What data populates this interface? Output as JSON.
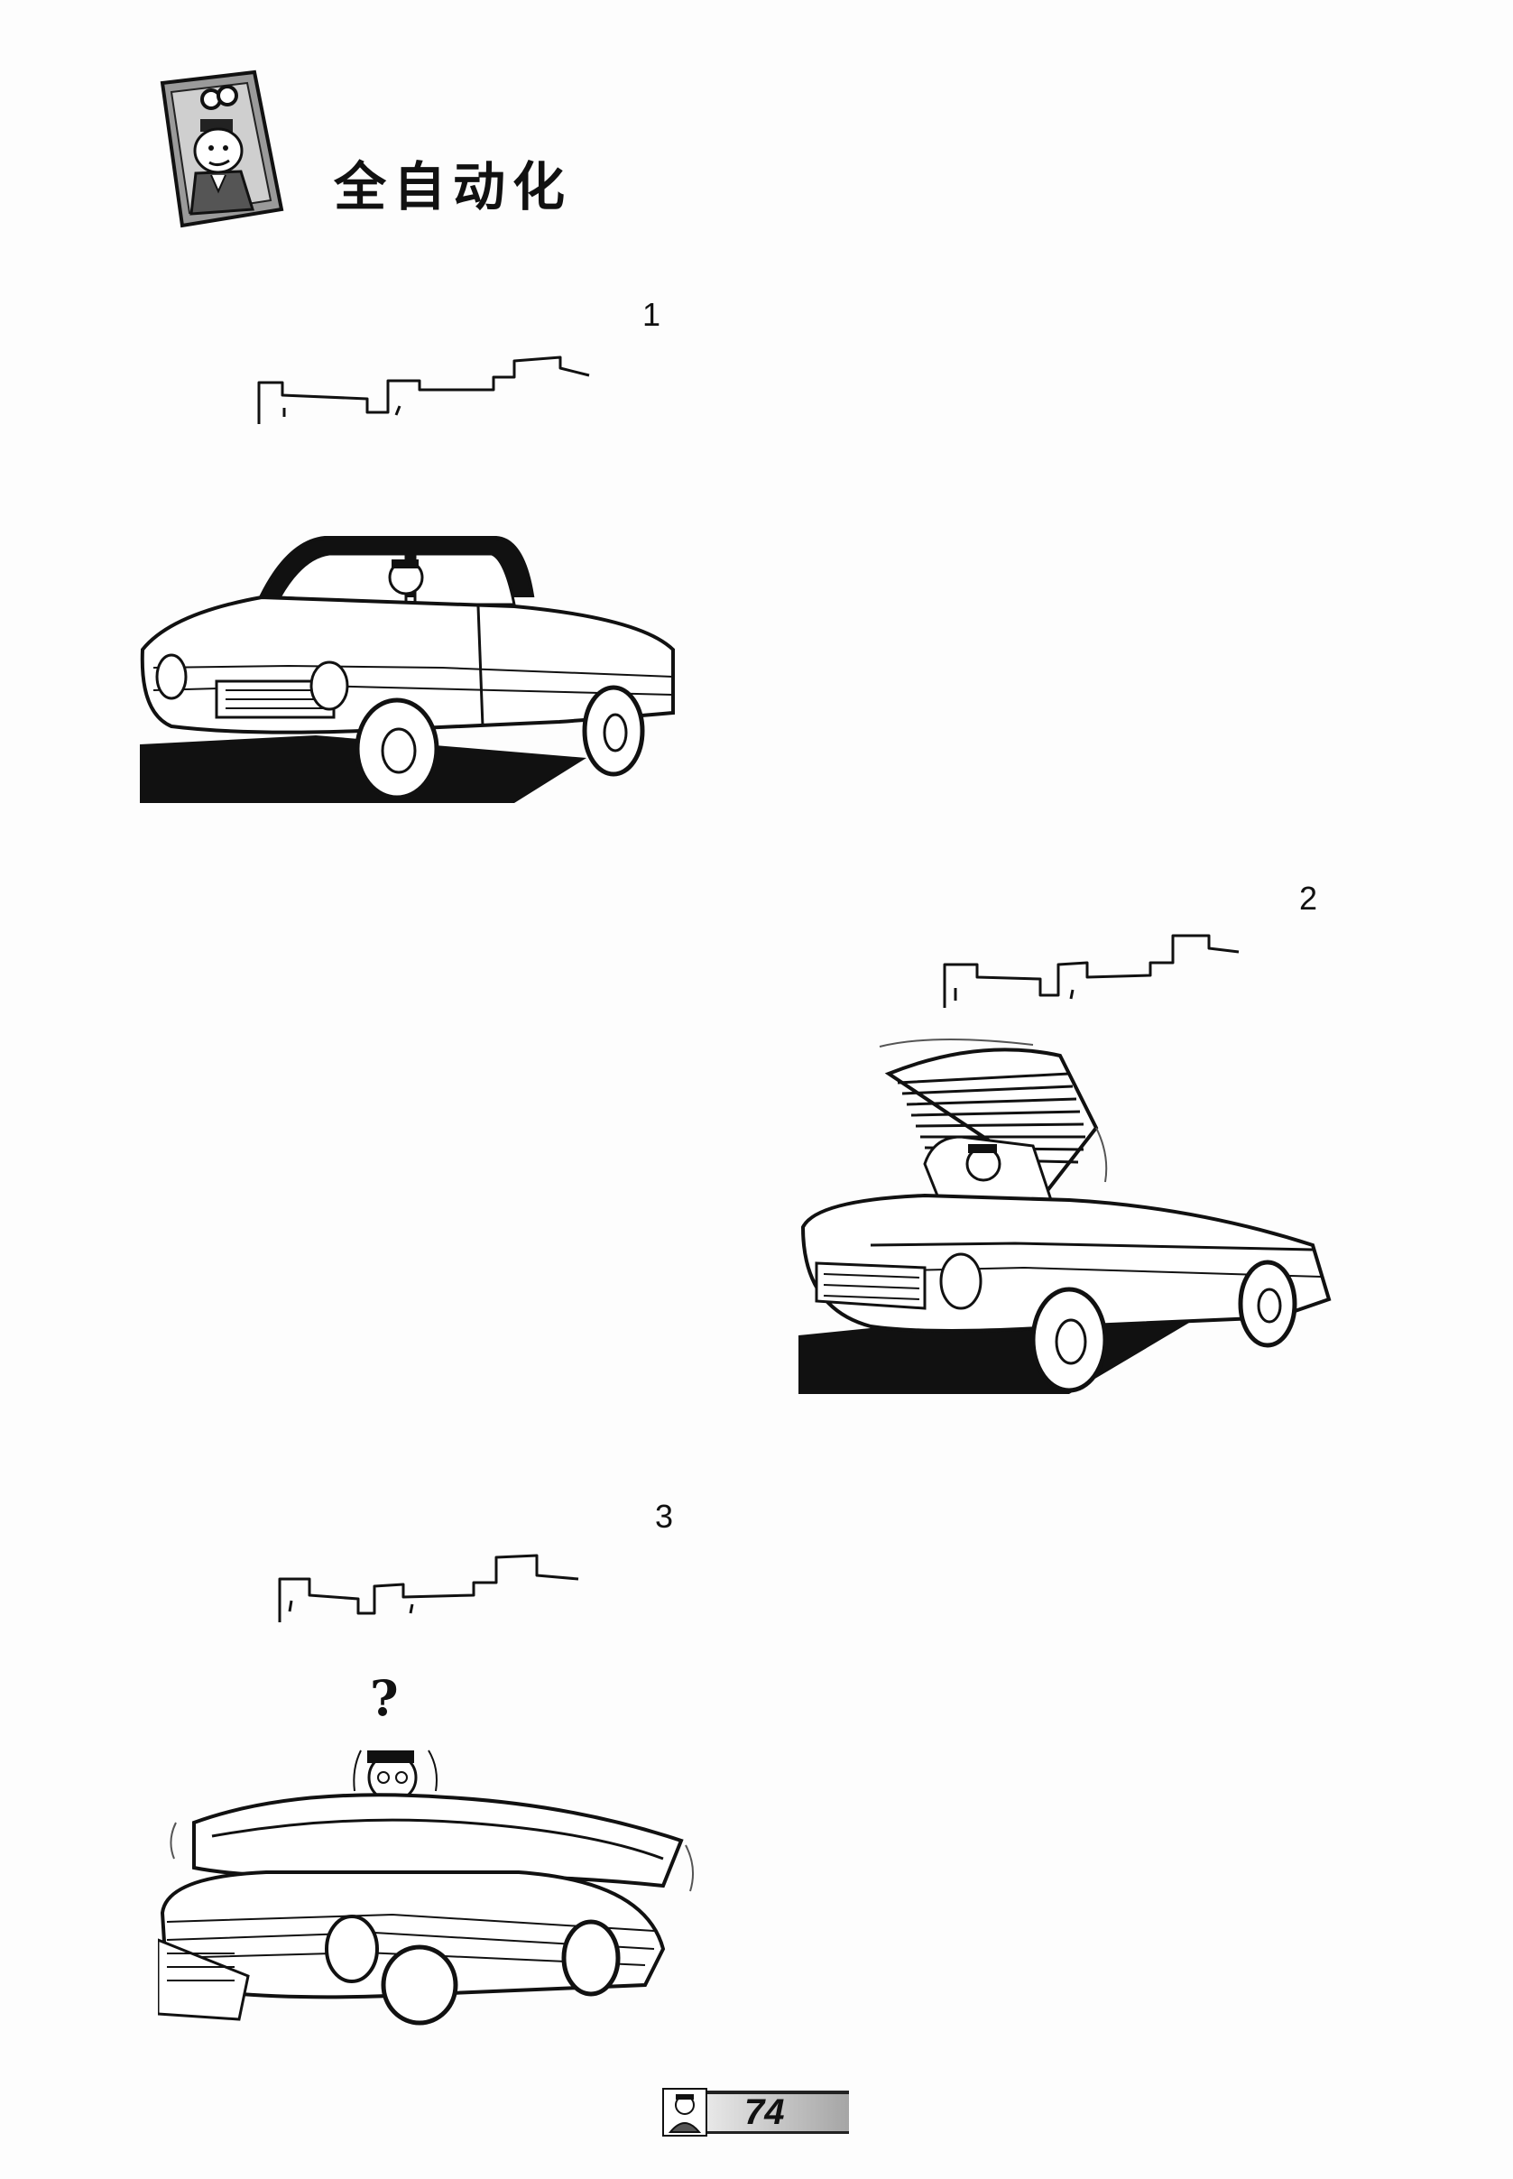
{
  "page": {
    "title": "全自动化",
    "page_number": "74"
  },
  "panels": [
    {
      "number": "1",
      "scene": "car-closed-roof"
    },
    {
      "number": "2",
      "scene": "car-roof-opening"
    },
    {
      "number": "3",
      "scene": "car-collapsed",
      "speech": "?"
    }
  ],
  "icons": {
    "header": "character-portrait-note-icon",
    "footer": "character-portrait-icon"
  },
  "colors": {
    "ink": "#111111",
    "paper": "#fdfdfd",
    "badge_light": "#e8e8e8",
    "badge_dark": "#a5a5a5"
  }
}
